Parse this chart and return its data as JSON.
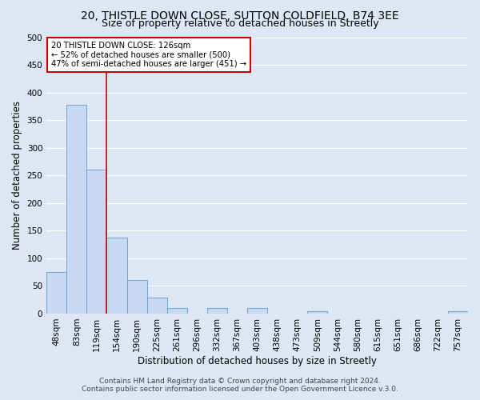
{
  "title": "20, THISTLE DOWN CLOSE, SUTTON COLDFIELD, B74 3EE",
  "subtitle": "Size of property relative to detached houses in Streetly",
  "xlabel": "Distribution of detached houses by size in Streetly",
  "ylabel": "Number of detached properties",
  "bar_labels": [
    "48sqm",
    "83sqm",
    "119sqm",
    "154sqm",
    "190sqm",
    "225sqm",
    "261sqm",
    "296sqm",
    "332sqm",
    "367sqm",
    "403sqm",
    "438sqm",
    "473sqm",
    "509sqm",
    "544sqm",
    "580sqm",
    "615sqm",
    "651sqm",
    "686sqm",
    "722sqm",
    "757sqm"
  ],
  "bar_values": [
    75,
    378,
    260,
    137,
    61,
    29,
    10,
    0,
    10,
    0,
    10,
    0,
    0,
    5,
    0,
    0,
    0,
    0,
    0,
    0,
    5
  ],
  "bar_color": "#c6d9f0",
  "bar_edge_color": "#5b9bd5",
  "ylim": [
    0,
    500
  ],
  "yticks": [
    0,
    50,
    100,
    150,
    200,
    250,
    300,
    350,
    400,
    450,
    500
  ],
  "marker_line_color": "#cc0000",
  "annotation_line1": "20 THISTLE DOWN CLOSE: 126sqm",
  "annotation_line2": "← 52% of detached houses are smaller (500)",
  "annotation_line3": "47% of semi-detached houses are larger (451) →",
  "annotation_box_color": "#ffffff",
  "annotation_box_edge_color": "#cc0000",
  "footer1": "Contains HM Land Registry data © Crown copyright and database right 2024.",
  "footer2": "Contains public sector information licensed under the Open Government Licence v.3.0.",
  "background_color": "#dce6f5",
  "plot_background_color": "#dce6f5",
  "grid_color": "#ffffff",
  "title_fontsize": 10,
  "subtitle_fontsize": 9,
  "axis_label_fontsize": 8.5,
  "tick_fontsize": 7.5,
  "footer_fontsize": 6.5
}
